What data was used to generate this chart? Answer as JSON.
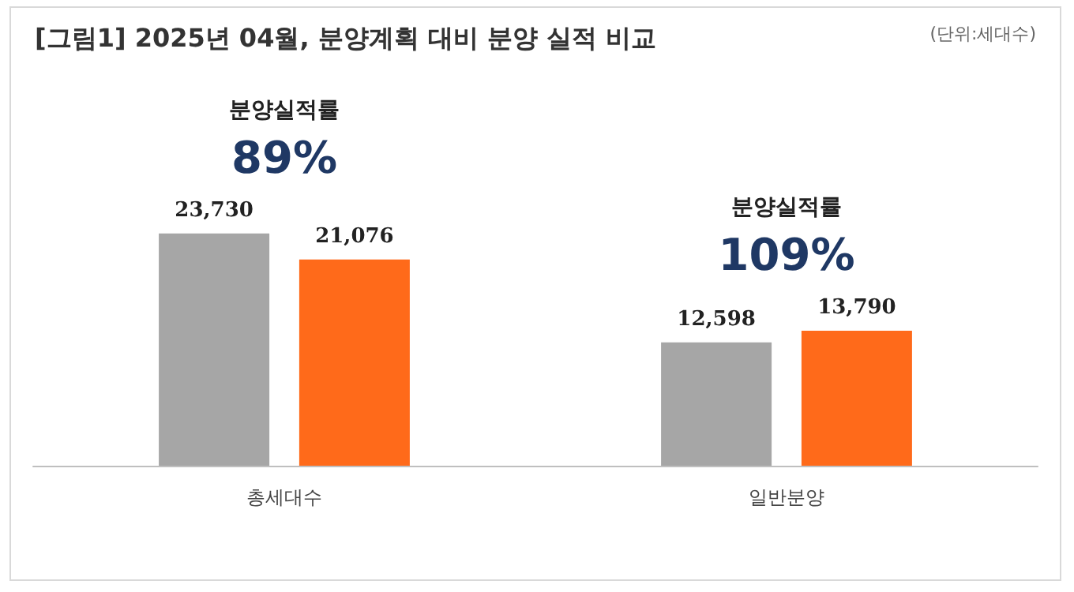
{
  "chart_data": {
    "type": "bar",
    "title": "[그림1] 2025년 04월, 분양계획 대비 분양 실적 비교",
    "subtitle": "(단위:세대수)",
    "categories": [
      "총세대수",
      "일반분양"
    ],
    "series": [
      {
        "color": "#a6a6a6",
        "values": [
          23730,
          12598
        ],
        "value_labels": [
          "23,730",
          "12,598"
        ]
      },
      {
        "color": "#ff6a1a",
        "values": [
          21076,
          13790
        ],
        "value_labels": [
          "21,076",
          "13,790"
        ]
      }
    ],
    "annotations": [
      "분양실적률",
      "89%",
      "분양실적률",
      "109%"
    ]
  }
}
